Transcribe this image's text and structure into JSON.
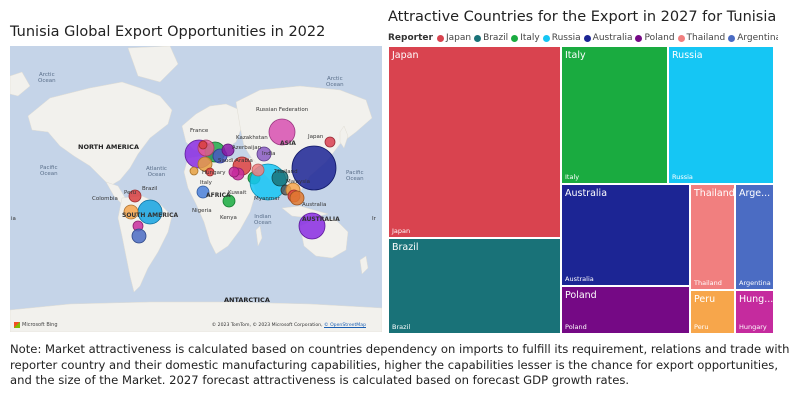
{
  "map": {
    "title": "Tunisia Global Export Opportunities in 2022",
    "labels": {
      "arctic_left": "Arctic\nOcean",
      "arctic_right": "Arctic\nOcean",
      "north_america": "NORTH AMERICA",
      "pacific_left": "Pacific\nOcean",
      "pacific_right": "Pacific\nOcean",
      "atlantic": "Atlantic\nOcean",
      "indian": "Indian\nOcean",
      "south_america": "SOUTH AMERICA",
      "africa": "AFRICA",
      "asia": "ASIA",
      "australia": "AUSTRALIA",
      "antarctica": "ANTARCTICA",
      "russian_federation": "Russian Federation",
      "kazakhstan": "Kazakhstan",
      "france": "France",
      "japan": "Japan",
      "azerbaijan": "Azerbaijan",
      "india": "India",
      "saudi_arabia": "Saudi Arabia",
      "italy": "Italy",
      "thailand": "Thailand",
      "malaysia": "Malaysia",
      "myanmar": "Myanmar",
      "kuwait": "Kuwait",
      "nigeria": "Nigeria",
      "kenya": "Kenya",
      "brazil": "Brazil",
      "colombia": "Colombia",
      "peru": "Peru",
      "australia_city": "Australia",
      "hungary": "Hungary",
      "edge_left": "ia",
      "edge_right": "Ir"
    },
    "attribution_prefix": "© 2023 TomTom, © 2023 Microsoft Corporation,",
    "attribution_link": "© OpenStreetMap",
    "bing": "Microsoft Bing",
    "colors": {
      "ocean": "#c5d4e8",
      "land": "#f2f1ed"
    }
  },
  "treemap": {
    "title": "Attractive Countries for the Export in 2027 for Tunisia",
    "legend_title": "Reporter",
    "more_glyph": "▸"
  },
  "chart_data": {
    "type": "treemap",
    "title": "Attractive Countries for the Export in 2027 for Tunisia",
    "legend_title": "Reporter",
    "items": [
      {
        "name": "Japan",
        "short": "Japan",
        "value": 50,
        "color": "#d9434f"
      },
      {
        "name": "Brazil",
        "short": "Brazil",
        "value": 22,
        "color": "#197278"
      },
      {
        "name": "Italy",
        "short": "Italy",
        "value": 20,
        "color": "#1aab40"
      },
      {
        "name": "Russia",
        "short": "Russia",
        "value": 22,
        "color": "#15c6f4"
      },
      {
        "name": "Australia",
        "short": "Australia",
        "value": 27,
        "color": "#1c2594"
      },
      {
        "name": "Poland",
        "short": "Poland",
        "value": 10,
        "color": "#750985"
      },
      {
        "name": "Thailand",
        "short": "Thailand",
        "value": 9,
        "color": "#f17f7f"
      },
      {
        "name": "Argentina",
        "short": "Arge...",
        "value": 8,
        "color": "#4b6cc3"
      },
      {
        "name": "Peru",
        "short": "Peru",
        "value": 4,
        "color": "#f7a64b"
      },
      {
        "name": "Hungary",
        "short": "Hung...",
        "value": 3.5,
        "color": "#c52b9e"
      }
    ]
  },
  "note": "Note: Market attractiveness is calculated based on countries dependency on imports to fulfill its requirement, relations and trade with reporter country and their domestic manufacturing capabilities, higher the capabilities lesser is the chance for export opportunities, and the size of the Market. 2027 forecast attractiveness is calculated based on forecast GDP growth rates."
}
